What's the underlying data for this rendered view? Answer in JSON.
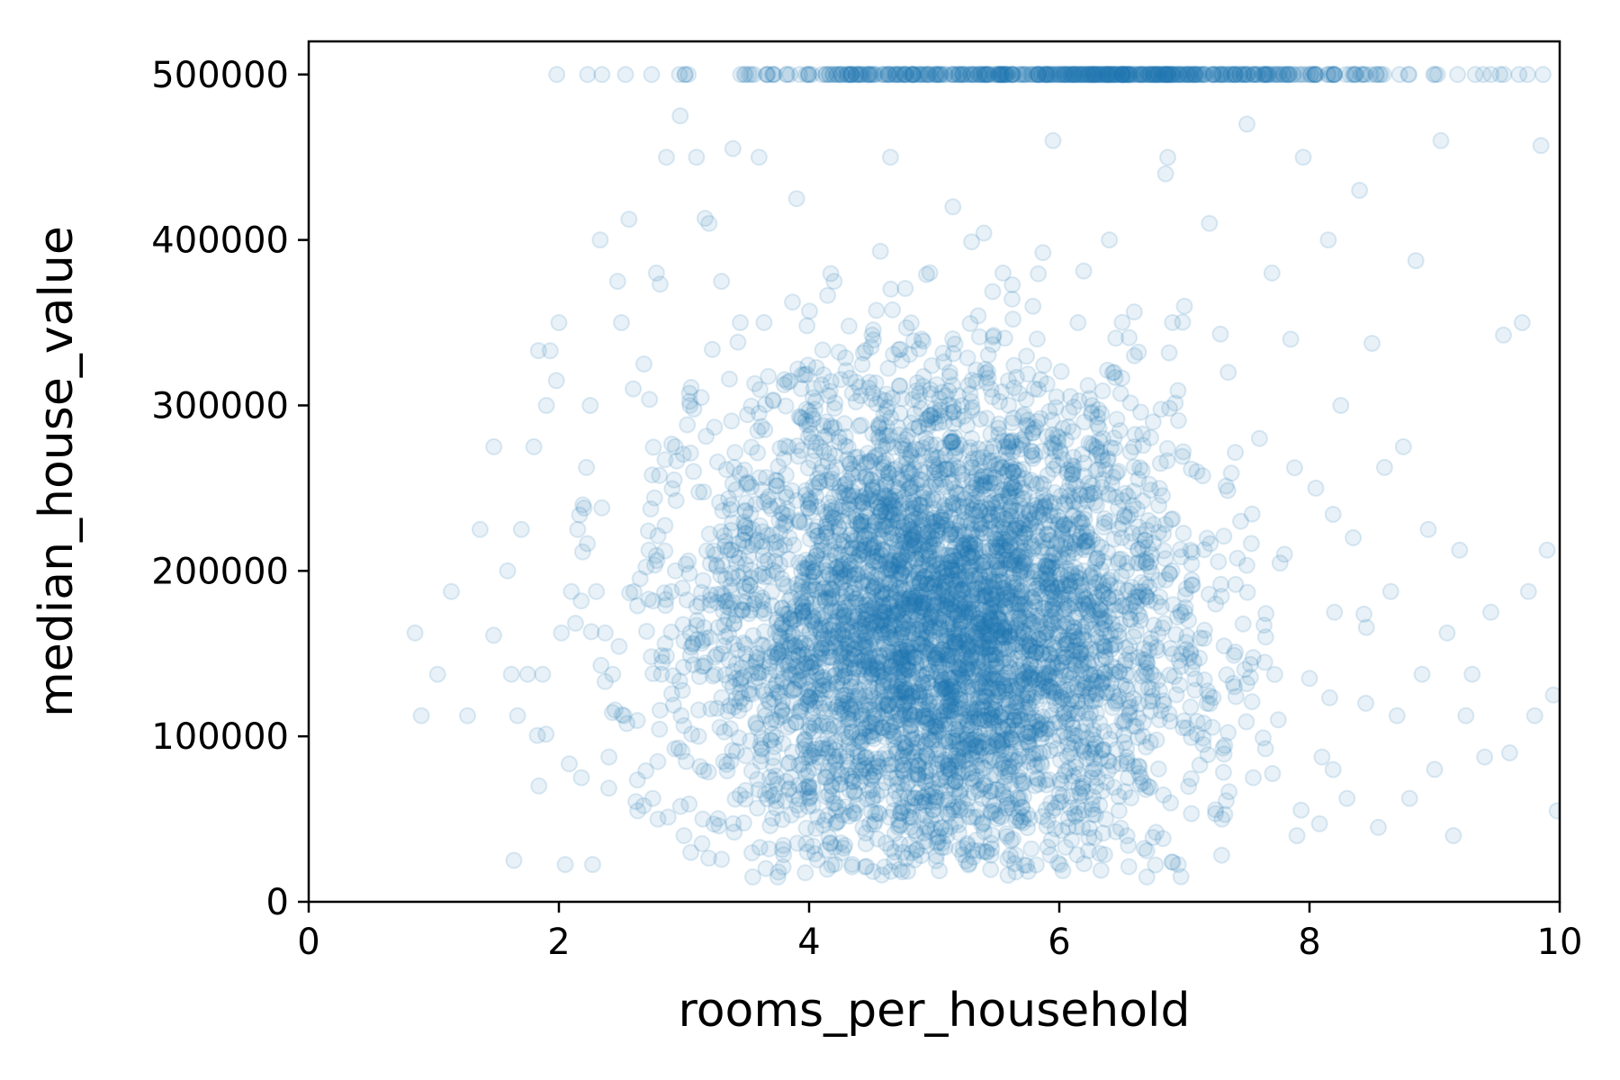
{
  "chart_data": {
    "type": "scatter",
    "title": "",
    "xlabel": "rooms_per_household",
    "ylabel": "median_house_value",
    "xlim": [
      0,
      10
    ],
    "ylim": [
      0,
      520000
    ],
    "xticks": [
      0,
      2,
      4,
      6,
      8,
      10
    ],
    "yticks": [
      0,
      100000,
      200000,
      300000,
      400000,
      500000
    ],
    "xtick_labels": [
      "0",
      "2",
      "4",
      "6",
      "8",
      "10"
    ],
    "ytick_labels": [
      "0",
      "100000",
      "200000",
      "300000",
      "400000",
      "500000"
    ],
    "grid": false,
    "legend": "none",
    "marker_color": "#1f77b4",
    "marker_alpha": 0.1,
    "series": [
      {
        "cap_value": 500001,
        "points": [
          [
            0.85,
            162500
          ],
          [
            0.9,
            112500
          ],
          [
            1.03,
            137500
          ],
          [
            1.14,
            187500
          ],
          [
            1.27,
            112500
          ],
          [
            1.37,
            225000
          ],
          [
            1.48,
            275000
          ],
          [
            1.59,
            200000
          ],
          [
            1.62,
            137500
          ],
          [
            1.64,
            25000
          ],
          [
            1.67,
            112500
          ],
          [
            1.7,
            225000
          ],
          [
            1.75,
            137500
          ],
          [
            1.8,
            275000
          ],
          [
            1.84,
            70000
          ],
          [
            1.87,
            137500
          ],
          [
            1.9,
            300000
          ],
          [
            1.93,
            333000
          ],
          [
            1.98,
            315000
          ],
          [
            2.0,
            350000
          ],
          [
            2.02,
            162500
          ],
          [
            2.05,
            22500
          ],
          [
            2.1,
            187500
          ],
          [
            2.15,
            225000
          ],
          [
            2.18,
            75000
          ],
          [
            2.22,
            262500
          ],
          [
            2.25,
            300000
          ],
          [
            2.27,
            22500
          ],
          [
            2.3,
            187500
          ],
          [
            2.33,
            400000
          ],
          [
            2.37,
            162500
          ],
          [
            2.4,
            87500
          ],
          [
            2.43,
            137500
          ],
          [
            2.47,
            375000
          ],
          [
            2.5,
            350000
          ],
          [
            2.52,
            112500
          ],
          [
            2.56,
            412500
          ],
          [
            2.6,
            187500
          ],
          [
            2.63,
            55000
          ],
          [
            2.68,
            325000
          ],
          [
            2.72,
            212500
          ],
          [
            2.75,
            62500
          ],
          [
            2.78,
            380000
          ],
          [
            2.82,
            137500
          ],
          [
            2.86,
            450000
          ],
          [
            2.9,
            187500
          ],
          [
            2.93,
            275000
          ],
          [
            2.97,
            475000
          ],
          [
            3.0,
            40000
          ],
          [
            3.05,
            162500
          ],
          [
            3.1,
            450000
          ],
          [
            3.15,
            50000
          ],
          [
            3.2,
            410000
          ],
          [
            3.25,
            137500
          ],
          [
            3.3,
            375000
          ],
          [
            3.35,
            212500
          ],
          [
            3.4,
            262500
          ],
          [
            3.45,
            350000
          ],
          [
            3.5,
            187500
          ],
          [
            3.55,
            15000
          ],
          [
            3.6,
            450000
          ],
          [
            3.65,
            112500
          ],
          [
            3.7,
            237500
          ],
          [
            3.75,
            15000
          ],
          [
            3.8,
            312500
          ],
          [
            3.85,
            137500
          ],
          [
            3.9,
            425000
          ],
          [
            3.95,
            175000
          ],
          [
            4.0,
            62500
          ],
          [
            4.05,
            250000
          ],
          [
            4.1,
            150000
          ],
          [
            4.15,
            90000
          ],
          [
            4.2,
            375000
          ],
          [
            4.25,
            200000
          ],
          [
            4.3,
            120000
          ],
          [
            4.35,
            55000
          ],
          [
            4.4,
            287500
          ],
          [
            4.45,
            162500
          ],
          [
            4.5,
            100000
          ],
          [
            4.55,
            225000
          ],
          [
            4.6,
            137500
          ],
          [
            4.65,
            450000
          ],
          [
            4.7,
            75000
          ],
          [
            4.75,
            180000
          ],
          [
            4.8,
            260000
          ],
          [
            4.85,
            115000
          ],
          [
            4.9,
            340000
          ],
          [
            4.95,
            150000
          ],
          [
            5.0,
            60000
          ],
          [
            5.05,
            210000
          ],
          [
            5.1,
            130000
          ],
          [
            5.15,
            420000
          ],
          [
            5.2,
            95000
          ],
          [
            5.25,
            175000
          ],
          [
            5.3,
            280000
          ],
          [
            5.35,
            145000
          ],
          [
            5.4,
            70000
          ],
          [
            5.45,
            230000
          ],
          [
            5.5,
            125000
          ],
          [
            5.55,
            380000
          ],
          [
            5.6,
            160000
          ],
          [
            5.65,
            85000
          ],
          [
            5.7,
            250000
          ],
          [
            5.75,
            140000
          ],
          [
            5.8,
            310000
          ],
          [
            5.85,
            105000
          ],
          [
            5.9,
            195000
          ],
          [
            5.95,
            460000
          ],
          [
            6.0,
            65000
          ],
          [
            6.05,
            240000
          ],
          [
            6.1,
            135000
          ],
          [
            6.15,
            350000
          ],
          [
            6.2,
            180000
          ],
          [
            6.25,
            90000
          ],
          [
            6.3,
            270000
          ],
          [
            6.35,
            155000
          ],
          [
            6.4,
            400000
          ],
          [
            6.45,
            120000
          ],
          [
            6.5,
            220000
          ],
          [
            6.55,
            75000
          ],
          [
            6.6,
            330000
          ],
          [
            6.65,
            170000
          ],
          [
            6.7,
            15000
          ],
          [
            6.75,
            290000
          ],
          [
            6.8,
            110000
          ],
          [
            6.85,
            440000
          ],
          [
            6.9,
            200000
          ],
          [
            6.95,
            22500
          ],
          [
            7.0,
            360000
          ],
          [
            7.05,
            150000
          ],
          [
            7.1,
            260000
          ],
          [
            7.15,
            95000
          ],
          [
            7.2,
            410000
          ],
          [
            7.25,
            180000
          ],
          [
            7.3,
            50000
          ],
          [
            7.35,
            320000
          ],
          [
            7.4,
            130000
          ],
          [
            7.45,
            230000
          ],
          [
            7.5,
            470000
          ],
          [
            7.55,
            75000
          ],
          [
            7.6,
            280000
          ],
          [
            7.65,
            160000
          ],
          [
            7.7,
            380000
          ],
          [
            7.75,
            110000
          ],
          [
            7.8,
            210000
          ],
          [
            7.85,
            340000
          ],
          [
            7.9,
            40000
          ],
          [
            7.95,
            450000
          ],
          [
            8.0,
            135000
          ],
          [
            8.05,
            250000
          ],
          [
            8.1,
            87500
          ],
          [
            8.15,
            400000
          ],
          [
            8.2,
            175000
          ],
          [
            8.25,
            300000
          ],
          [
            8.3,
            62500
          ],
          [
            8.35,
            220000
          ],
          [
            8.4,
            430000
          ],
          [
            8.45,
            120000
          ],
          [
            8.5,
            337500
          ],
          [
            8.55,
            45000
          ],
          [
            8.6,
            262500
          ],
          [
            8.65,
            187500
          ],
          [
            8.7,
            112500
          ],
          [
            8.75,
            275000
          ],
          [
            8.8,
            62500
          ],
          [
            8.85,
            387500
          ],
          [
            8.9,
            137500
          ],
          [
            8.95,
            225000
          ],
          [
            9.0,
            80000
          ],
          [
            9.05,
            460000
          ],
          [
            9.1,
            162500
          ],
          [
            9.15,
            40000
          ],
          [
            9.2,
            212500
          ],
          [
            9.25,
            112500
          ],
          [
            9.3,
            137500
          ],
          [
            9.4,
            87500
          ],
          [
            9.45,
            175000
          ],
          [
            9.55,
            342500
          ],
          [
            9.6,
            90000
          ],
          [
            9.7,
            350000
          ],
          [
            9.75,
            187500
          ],
          [
            9.8,
            112500
          ],
          [
            9.85,
            457000
          ],
          [
            9.9,
            212500
          ],
          [
            9.95,
            125000
          ],
          [
            9.98,
            55000
          ]
        ]
      }
    ]
  }
}
